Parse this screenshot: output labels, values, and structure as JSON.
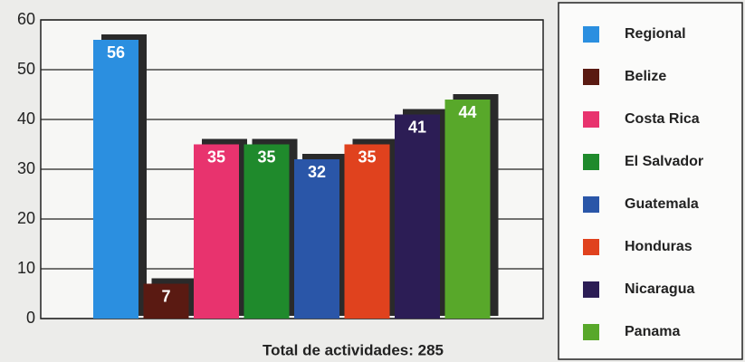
{
  "chart_data": {
    "type": "bar",
    "categories": [
      "Regional",
      "Belize",
      "Costa Rica",
      "El Salvador",
      "Guatemala",
      "Honduras",
      "Nicaragua",
      "Panama"
    ],
    "values": [
      56,
      7,
      35,
      35,
      32,
      35,
      41,
      44
    ],
    "colors": [
      "#2b8fe0",
      "#5a1a12",
      "#e8336e",
      "#1f8a2c",
      "#2a56a8",
      "#e0421e",
      "#2c1d55",
      "#58a82a"
    ],
    "xlabel": "Total de actividades: 285",
    "ylim": [
      0,
      60
    ],
    "yticks": [
      0,
      10,
      20,
      30,
      40,
      50,
      60
    ],
    "grid": true,
    "legend": "right"
  }
}
